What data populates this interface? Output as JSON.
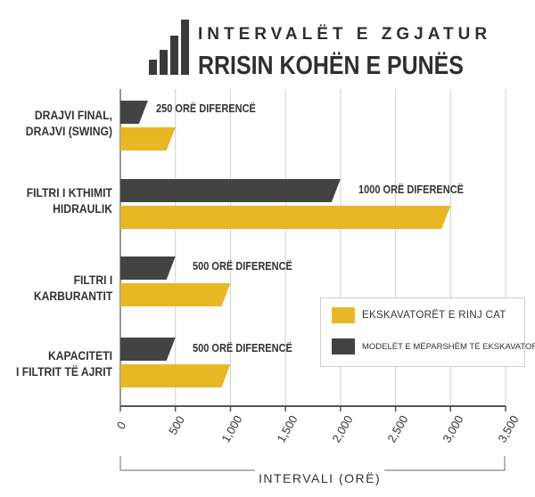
{
  "header": {
    "title": "INTERVALËT E ZGJATUR",
    "subtitle": "RRISIN KOHËN E PUNËS"
  },
  "colors": {
    "new": "#E8B724",
    "old": "#434343",
    "text": "#2f2f2f",
    "grid": "#cfcfcf"
  },
  "legend": {
    "position": "right-middle",
    "items": [
      {
        "label": "EKSKAVATORËT E RINJ CAT",
        "color": "#E8B724",
        "icon": "yellow-swatch"
      },
      {
        "label": "MODELËT E MËPARSHËM TË EKSKAVATORËVE",
        "color": "#434343",
        "icon": "dark-swatch"
      }
    ]
  },
  "chart_data": {
    "type": "bar",
    "orientation": "horizontal",
    "title": "INTERVALËT E ZGJATUR",
    "subtitle": "RRISIN KOHËN E PUNËS",
    "xlabel": "INTERVALI (ORË)",
    "ylabel": "",
    "xlim": [
      0,
      3500
    ],
    "xticks": [
      "0",
      "500",
      "1,000",
      "1,500",
      "2,000",
      "2,500",
      "3,000",
      "3,500"
    ],
    "grid": true,
    "categories": [
      "DRAJVI FINAL,\nDRAJVI (SWING)",
      "FILTRI I KTHIMIT\nHIDRAULIK",
      "FILTRI I\nKARBURANTIT",
      "KAPACITETI\nI FILTRIT TË AJRIT"
    ],
    "series": [
      {
        "name": "MODELËT E MËPARSHËM TË EKSKAVATORËVE",
        "values": [
          250,
          2000,
          500,
          500
        ]
      },
      {
        "name": "EKSKAVATORËT E RINJ CAT",
        "values": [
          500,
          3000,
          1000,
          1000
        ]
      }
    ],
    "annotations": [
      "250 ORË DIFERENCË",
      "1000 ORË DIFERENCË",
      "500 ORË DIFERENCË",
      "500 ORË DIFERENCË"
    ]
  }
}
